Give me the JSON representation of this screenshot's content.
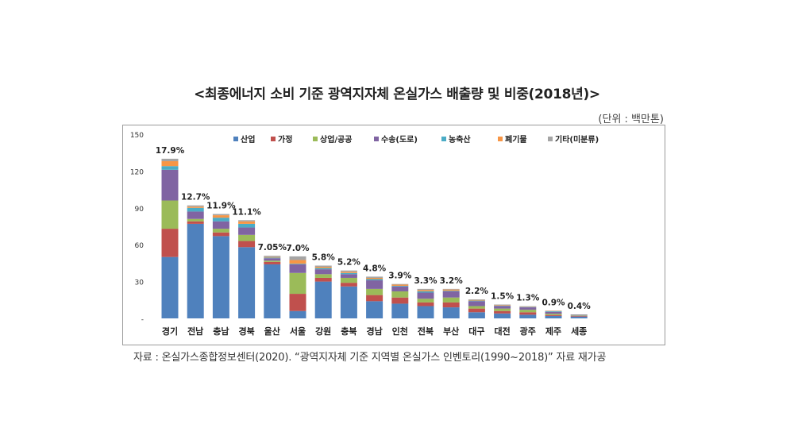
{
  "title": "<최종에너지 소비 기준 광역지자체 온실가스 배출량 및 비중(2018년)>",
  "unit": "(단위 : 백만톤)",
  "source": "자료 : 온실가스종합정보센터(2020). “광역지자체 기준 지역별 온실가스 인벤토리(1990~2018)” 자료 재가공",
  "colors": {
    "산업": "#4f81bd",
    "가정": "#c0504d",
    "상업/공공": "#9bbb59",
    "수송(도로)": "#8064a2",
    "농축산": "#4bacc6",
    "폐기물": "#f79646",
    "기타(미분류)": "#a5a5a5"
  },
  "chart_data": {
    "type": "bar",
    "stacked": true,
    "title": "<최종에너지 소비 기준 광역지자체 온실가스 배출량 및 비중(2018년)>",
    "ylim": [
      0,
      150
    ],
    "yticks": [
      0,
      30,
      60,
      90,
      120,
      150
    ],
    "ytick_labels": [
      "-",
      "30",
      "60",
      "90",
      "120",
      "150"
    ],
    "grid": false,
    "legend_position": "top",
    "categories": [
      "경기",
      "전남",
      "충남",
      "경북",
      "울산",
      "서울",
      "강원",
      "충북",
      "경남",
      "인천",
      "전북",
      "부산",
      "대구",
      "대전",
      "광주",
      "제주",
      "세종"
    ],
    "shares": [
      "17.9%",
      "12.7%",
      "11.9%",
      "11.1%",
      "7.05%",
      "7.0%",
      "5.8%",
      "5.2%",
      "4.8%",
      "3.9%",
      "3.3%",
      "3.2%",
      "2.2%",
      "1.5%",
      "1.3%",
      "0.9%",
      "0.4%"
    ],
    "series": [
      {
        "name": "산업",
        "values": [
          50,
          77,
          67,
          58,
          44,
          6,
          30,
          26,
          14,
          12,
          10,
          9,
          5,
          4,
          3,
          2,
          1.5
        ]
      },
      {
        "name": "가정",
        "values": [
          23,
          2,
          3,
          5,
          2,
          14,
          3,
          3,
          5,
          5,
          3,
          4,
          3,
          2,
          2,
          0.8,
          0.5
        ]
      },
      {
        "name": "상업/공공",
        "values": [
          23,
          2,
          3,
          5,
          1,
          17,
          3,
          4,
          5,
          5,
          3,
          4,
          2,
          2,
          2,
          1,
          0.4
        ]
      },
      {
        "name": "수송(도로)",
        "values": [
          25,
          6,
          6,
          6,
          2,
          7,
          4,
          3,
          7,
          4,
          5,
          5,
          4,
          2,
          2,
          1.5,
          0.5
        ]
      },
      {
        "name": "농축산",
        "values": [
          3,
          3,
          3,
          3,
          0.5,
          0.5,
          1,
          1,
          1,
          0.5,
          1,
          0.5,
          0.5,
          0.3,
          0.3,
          0.5,
          0.1
        ]
      },
      {
        "name": "폐기물",
        "values": [
          4,
          1,
          2,
          2,
          0.5,
          3,
          1,
          1,
          1,
          1,
          1,
          1,
          0.5,
          0.5,
          0.3,
          0.3,
          0.1
        ]
      },
      {
        "name": "기타(미분류)",
        "values": [
          2,
          1,
          1,
          1,
          1,
          3,
          1,
          1,
          1,
          0.5,
          1,
          0.5,
          0.5,
          0.5,
          0.3,
          0.2,
          0.1
        ]
      }
    ]
  }
}
